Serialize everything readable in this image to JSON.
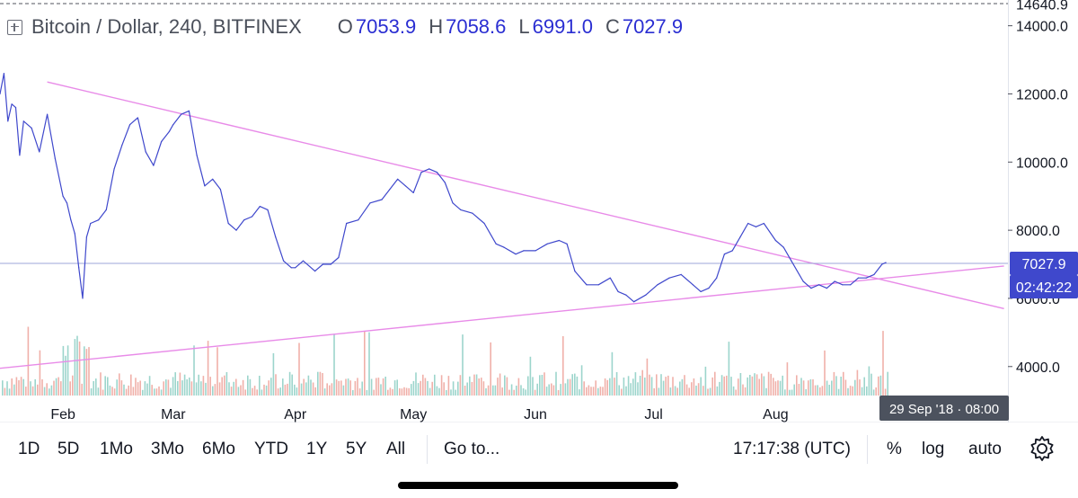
{
  "legend": {
    "symbol": "Bitcoin / Dollar, 240, BITFINEX",
    "open_label": "O",
    "open_value": "7053.9",
    "high_label": "H",
    "high_value": "7058.6",
    "low_label": "L",
    "low_value": "6991.0",
    "close_label": "C",
    "close_value": "7027.9"
  },
  "chart_data": {
    "type": "line",
    "title": "Bitcoin / Dollar, 240, BITFINEX",
    "y_ticks": [
      4000,
      6000,
      8000,
      10000,
      12000,
      14000
    ],
    "y_tick_labels": [
      "4000.0",
      "6000.0",
      "8000.0",
      "10000.0",
      "12000.0",
      "14000.0"
    ],
    "y_top_label": "14640.9",
    "y_top_value": 14640.9,
    "ylim": [
      3150,
      14650
    ],
    "xlim": [
      "2018-01-16",
      "2018-09-29"
    ],
    "x_ticks": [
      {
        "date": "2018-02-01",
        "label": "Feb"
      },
      {
        "date": "2018-03-01",
        "label": "Mar"
      },
      {
        "date": "2018-04-01",
        "label": "Apr"
      },
      {
        "date": "2018-05-01",
        "label": "May"
      },
      {
        "date": "2018-06-01",
        "label": "Jun"
      },
      {
        "date": "2018-07-01",
        "label": "Jul"
      },
      {
        "date": "2018-08-01",
        "label": "Aug"
      }
    ],
    "series": [
      {
        "color": "#3f48cc",
        "x": [
          "2018-01-16",
          "2018-01-17",
          "2018-01-18",
          "2018-01-19",
          "2018-01-20",
          "2018-01-21",
          "2018-01-22",
          "2018-01-24",
          "2018-01-26",
          "2018-01-28",
          "2018-01-30",
          "2018-02-01",
          "2018-02-02",
          "2018-02-03",
          "2018-02-04",
          "2018-02-05",
          "2018-02-06",
          "2018-02-07",
          "2018-02-08",
          "2018-02-10",
          "2018-02-12",
          "2018-02-14",
          "2018-02-16",
          "2018-02-18",
          "2018-02-20",
          "2018-02-22",
          "2018-02-24",
          "2018-02-26",
          "2018-02-28",
          "2018-03-01",
          "2018-03-03",
          "2018-03-05",
          "2018-03-07",
          "2018-03-09",
          "2018-03-11",
          "2018-03-13",
          "2018-03-15",
          "2018-03-17",
          "2018-03-19",
          "2018-03-21",
          "2018-03-23",
          "2018-03-25",
          "2018-03-27",
          "2018-03-29",
          "2018-03-31",
          "2018-04-01",
          "2018-04-03",
          "2018-04-06",
          "2018-04-08",
          "2018-04-10",
          "2018-04-12",
          "2018-04-14",
          "2018-04-17",
          "2018-04-20",
          "2018-04-23",
          "2018-04-25",
          "2018-04-27",
          "2018-04-29",
          "2018-05-01",
          "2018-05-03",
          "2018-05-05",
          "2018-05-07",
          "2018-05-09",
          "2018-05-11",
          "2018-05-13",
          "2018-05-16",
          "2018-05-19",
          "2018-05-22",
          "2018-05-24",
          "2018-05-27",
          "2018-05-29",
          "2018-06-01",
          "2018-06-04",
          "2018-06-07",
          "2018-06-09",
          "2018-06-11",
          "2018-06-14",
          "2018-06-17",
          "2018-06-20",
          "2018-06-22",
          "2018-06-24",
          "2018-06-26",
          "2018-06-29",
          "2018-07-02",
          "2018-07-05",
          "2018-07-08",
          "2018-07-11",
          "2018-07-13",
          "2018-07-15",
          "2018-07-17",
          "2018-07-19",
          "2018-07-21",
          "2018-07-23",
          "2018-07-25",
          "2018-07-27",
          "2018-07-29",
          "2018-08-01",
          "2018-08-03",
          "2018-08-05",
          "2018-08-08",
          "2018-08-10",
          "2018-08-12",
          "2018-08-14",
          "2018-08-16",
          "2018-08-18",
          "2018-08-20",
          "2018-08-22",
          "2018-08-24",
          "2018-08-26",
          "2018-08-28",
          "2018-08-29"
        ],
        "values": [
          12000,
          12600,
          11200,
          11700,
          11600,
          10200,
          11200,
          11000,
          10300,
          11400,
          10100,
          9000,
          8800,
          8300,
          7900,
          6900,
          6000,
          7800,
          8200,
          8300,
          8600,
          9800,
          10500,
          11100,
          11300,
          10300,
          9900,
          10600,
          10900,
          11100,
          11400,
          11500,
          10200,
          9300,
          9500,
          9200,
          8200,
          8000,
          8300,
          8400,
          8700,
          8600,
          7800,
          7100,
          6900,
          6900,
          7100,
          6800,
          7000,
          7000,
          7200,
          8200,
          8300,
          8800,
          8900,
          9200,
          9500,
          9300,
          9100,
          9700,
          9800,
          9700,
          9400,
          8800,
          8600,
          8500,
          8200,
          7600,
          7500,
          7300,
          7400,
          7400,
          7600,
          7700,
          7600,
          6800,
          6400,
          6400,
          6600,
          6200,
          6100,
          5900,
          6100,
          6400,
          6600,
          6700,
          6400,
          6200,
          6300,
          6600,
          7300,
          7400,
          7800,
          8200,
          8100,
          8200,
          7700,
          7500,
          7100,
          6500,
          6300,
          6400,
          6300,
          6500,
          6400,
          6400,
          6600,
          6600,
          6700,
          7000,
          7050
        ]
      }
    ],
    "trendlines": [
      {
        "color": "#e88be8",
        "from": {
          "x": "2018-01-28",
          "y": 12350
        },
        "to": {
          "x": "2018-09-28",
          "y": 5700
        }
      },
      {
        "color": "#e88be8",
        "from": {
          "x": "2018-01-16",
          "y": 3950
        },
        "to": {
          "x": "2018-09-28",
          "y": 6950
        }
      }
    ],
    "current_price": {
      "value": 7027.9,
      "label": "7027.9",
      "countdown": "02:42:22",
      "color": "#3f48cc"
    },
    "crosshair_time_label": "29 Sep '18 · 08:00",
    "volume_colors": {
      "up": "#9cd5cc",
      "down": "#f0b0a9"
    }
  },
  "toolbar": {
    "ranges": [
      "1D",
      "5D",
      "1Mo",
      "3Mo",
      "6Mo",
      "YTD",
      "1Y",
      "5Y",
      "All"
    ],
    "goto_label": "Go to...",
    "clock": "17:17:38 (UTC)",
    "percent_label": "%",
    "log_label": "log",
    "auto_label": "auto"
  },
  "icons": {
    "settings": "gear-icon",
    "expand": "plus-square-icon"
  }
}
